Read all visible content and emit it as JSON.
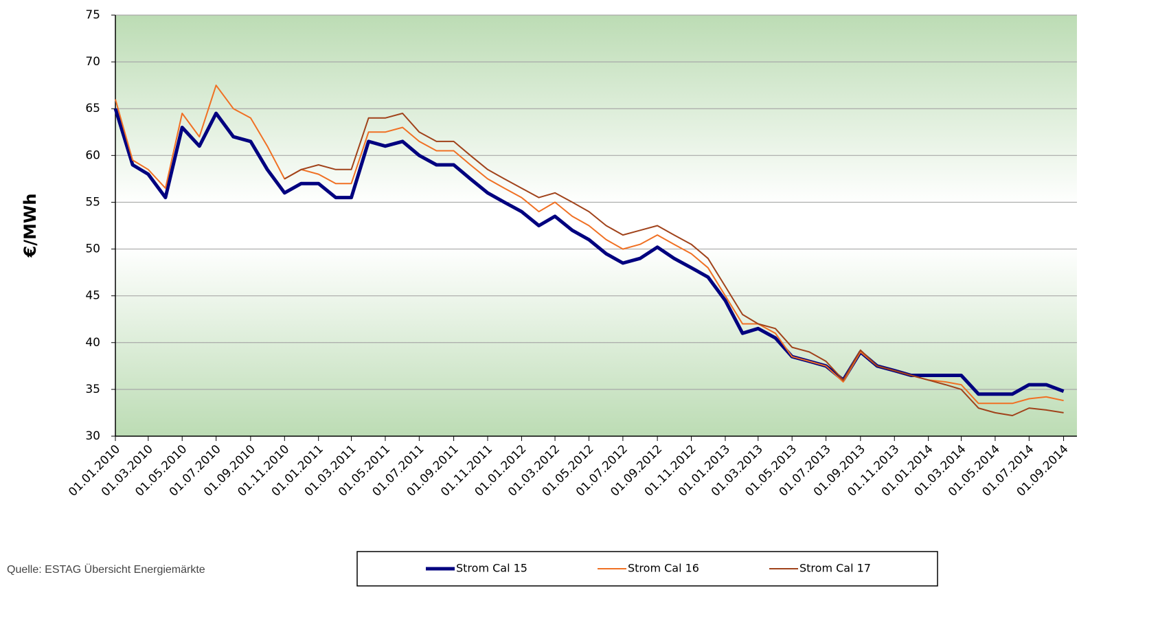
{
  "chart_data": {
    "type": "line",
    "y_label": "€/MWh",
    "source": "Quelle: ESTAG Übersicht Energiemärkte",
    "x": [
      "01.01.2010",
      "01.02.2010",
      "01.03.2010",
      "01.04.2010",
      "01.05.2010",
      "01.06.2010",
      "01.07.2010",
      "01.08.2010",
      "01.09.2010",
      "01.10.2010",
      "01.11.2010",
      "01.12.2010",
      "01.01.2011",
      "01.02.2011",
      "01.03.2011",
      "01.04.2011",
      "01.05.2011",
      "01.06.2011",
      "01.07.2011",
      "01.08.2011",
      "01.09.2011",
      "01.10.2011",
      "01.11.2011",
      "01.12.2011",
      "01.01.2012",
      "01.02.2012",
      "01.03.2012",
      "01.04.2012",
      "01.05.2012",
      "01.06.2012",
      "01.07.2012",
      "01.08.2012",
      "01.09.2012",
      "01.10.2012",
      "01.11.2012",
      "01.12.2012",
      "01.01.2013",
      "01.02.2013",
      "01.03.2013",
      "01.04.2013",
      "01.05.2013",
      "01.06.2013",
      "01.07.2013",
      "01.08.2013",
      "01.09.2013",
      "01.10.2013",
      "01.11.2013",
      "01.12.2013",
      "01.01.2014",
      "01.02.2014",
      "01.03.2014",
      "01.04.2014",
      "01.05.2014",
      "01.06.2014",
      "01.07.2014",
      "01.08.2014",
      "01.09.2014"
    ],
    "series": [
      {
        "name": "Strom Cal 15",
        "color": "#00007f",
        "width": 5,
        "values": [
          65,
          59,
          58,
          55.5,
          63,
          61,
          64.5,
          62,
          61.5,
          58.5,
          56,
          57,
          57,
          55.5,
          55.5,
          61.5,
          61,
          61.5,
          60,
          59,
          59,
          57.5,
          56,
          55,
          54,
          52.5,
          53.5,
          52,
          51,
          49.5,
          48.5,
          49,
          50.2,
          49,
          48,
          47,
          44.5,
          41,
          41.5,
          40.5,
          38.5,
          38,
          37.5,
          36,
          39,
          37.5,
          37,
          36.5,
          36.5,
          36.5,
          36.5,
          34.5,
          34.5,
          34.5,
          35.5,
          35.5,
          34.8
        ]
      },
      {
        "name": "Strom Cal 16",
        "color": "#f07023",
        "width": 2,
        "values": [
          66,
          59.5,
          58.5,
          56.5,
          64.5,
          62,
          67.5,
          65,
          64,
          61,
          57.5,
          58.5,
          58,
          57,
          57,
          62.5,
          62.5,
          63,
          61.5,
          60.5,
          60.5,
          59,
          57.5,
          56.5,
          55.5,
          54,
          55,
          53.5,
          52.5,
          51,
          50,
          50.5,
          51.5,
          50.5,
          49.5,
          48,
          45,
          42,
          42,
          41,
          38.5,
          38,
          37.5,
          35.8,
          39,
          37.5,
          37,
          36.5,
          36,
          35.8,
          35.5,
          33.5,
          33.5,
          33.5,
          34,
          34.2,
          33.8
        ]
      },
      {
        "name": "Strom Cal 17",
        "color": "#a0421a",
        "width": 2,
        "values": [
          null,
          null,
          null,
          null,
          null,
          null,
          null,
          null,
          null,
          null,
          57.5,
          58.5,
          59,
          58.5,
          58.5,
          64,
          64,
          64.5,
          62.5,
          61.5,
          61.5,
          60,
          58.5,
          57.5,
          56.5,
          55.5,
          56,
          55,
          54,
          52.5,
          51.5,
          52,
          52.5,
          51.5,
          50.5,
          49,
          46,
          43,
          42,
          41.5,
          39.5,
          39,
          38,
          36,
          39.2,
          37.5,
          37,
          36.5,
          36,
          35.5,
          35,
          33,
          32.5,
          32.2,
          33,
          32.8,
          32.5
        ]
      }
    ],
    "xlim": [
      "01.01.2010",
      "25.09.2014"
    ],
    "xticks": [
      "01.01.2010",
      "01.03.2010",
      "01.05.2010",
      "01.07.2010",
      "01.09.2010",
      "01.11.2010",
      "01.01.2011",
      "01.03.2011",
      "01.05.2011",
      "01.07.2011",
      "01.09.2011",
      "01.11.2011",
      "01.01.2012",
      "01.03.2012",
      "01.05.2012",
      "01.07.2012",
      "01.09.2012",
      "01.11.2012",
      "01.01.2013",
      "01.03.2013",
      "01.05.2013",
      "01.07.2013",
      "01.09.2013",
      "01.11.2013",
      "01.01.2014",
      "01.03.2014",
      "01.05.2014",
      "01.07.2014",
      "01.09.2014"
    ],
    "ylim": [
      30,
      75
    ],
    "yticks": [
      30,
      35,
      40,
      45,
      50,
      55,
      60,
      65,
      70,
      75
    ],
    "grid": true
  }
}
